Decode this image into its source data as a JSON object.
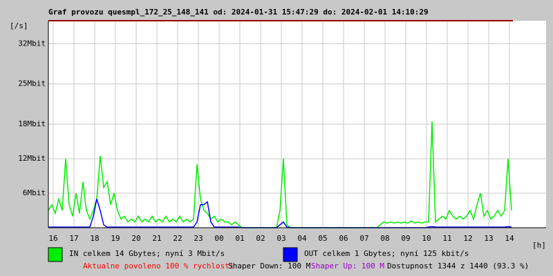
{
  "chart_data": {
    "type": "line",
    "title": "Graf provozu quesmpl_172_25_148_141 od: 2024-01-31 15:47:29 do: 2024-02-01 14:10:29",
    "y_label": "[/s]",
    "x_label": "[h]",
    "xtick_labels": [
      "16",
      "17",
      "18",
      "19",
      "20",
      "21",
      "22",
      "23",
      "00",
      "01",
      "02",
      "03",
      "04",
      "05",
      "06",
      "07",
      "08",
      "09",
      "10",
      "11",
      "12",
      "13",
      "14"
    ],
    "ylim": [
      0,
      36
    ],
    "yticks": [
      {
        "value": 6,
        "label": "6Mbit"
      },
      {
        "value": 12,
        "label": "12Mbit"
      },
      {
        "value": 18,
        "label": "18Mbit"
      },
      {
        "value": 25,
        "label": "25Mbit"
      },
      {
        "value": 32,
        "label": "32Mbit"
      }
    ],
    "grid": true,
    "series": [
      {
        "name": "IN celkem 14 Gbytes; nyní 3 Mbit/s",
        "color": "#00ee00",
        "values": [
          3,
          4,
          2.5,
          5,
          3,
          12,
          4,
          2,
          6,
          2.5,
          8,
          3,
          1.5,
          3,
          5,
          12.5,
          7,
          8,
          4,
          6,
          3,
          1.5,
          2,
          1,
          1.5,
          1,
          2,
          1,
          1.5,
          1,
          2,
          1,
          1.5,
          1,
          2,
          1,
          1.5,
          1,
          2,
          1,
          1.5,
          1,
          1.5,
          11,
          5,
          3,
          2.5,
          1.5,
          2,
          1,
          1.5,
          1,
          1,
          0.5,
          1,
          0.5,
          0,
          0,
          0,
          0,
          0,
          0,
          0,
          0,
          0,
          0,
          0,
          3,
          12,
          0.5,
          0,
          0,
          0,
          0,
          0,
          0,
          0,
          0,
          0,
          0,
          0,
          0,
          0,
          0,
          0,
          0,
          0,
          0,
          0,
          0,
          0,
          0,
          0,
          0,
          0,
          0,
          0.5,
          1,
          0.8,
          1,
          0.8,
          1,
          0.8,
          1,
          0.8,
          1.2,
          0.8,
          1,
          0.8,
          1,
          1,
          18.5,
          1,
          1.5,
          2,
          1.5,
          3,
          2,
          1.5,
          2,
          1.5,
          2,
          3,
          1.5,
          4,
          6,
          2,
          3,
          1.5,
          2,
          3,
          2,
          3,
          12,
          3
        ]
      },
      {
        "name": "OUT celkem 1 Gbytes; nyní 125 kbit/s",
        "color": "#0000ff",
        "values": [
          0.1,
          0.1,
          0.1,
          0.1,
          0.1,
          0.1,
          0.1,
          0.1,
          0.1,
          0.1,
          0.1,
          0.1,
          0.1,
          2,
          5,
          3,
          0.5,
          0.1,
          0.1,
          0.1,
          0.1,
          0.1,
          0.1,
          0.1,
          0.1,
          0.1,
          0.1,
          0.1,
          0.1,
          0.1,
          0.1,
          0.1,
          0.1,
          0.1,
          0.1,
          0.1,
          0.1,
          0.1,
          0.1,
          0.1,
          0.1,
          0.1,
          0.1,
          1,
          4,
          4,
          4.5,
          1,
          0.1,
          0.1,
          0.1,
          0.1,
          0.1,
          0.1,
          0.1,
          0.1,
          0,
          0,
          0,
          0,
          0,
          0,
          0,
          0,
          0,
          0,
          0,
          0.5,
          1,
          0.1,
          0,
          0,
          0,
          0,
          0,
          0,
          0,
          0,
          0,
          0,
          0,
          0,
          0,
          0,
          0,
          0,
          0,
          0,
          0,
          0,
          0,
          0,
          0,
          0,
          0,
          0,
          0,
          0,
          0,
          0,
          0,
          0,
          0,
          0,
          0,
          0,
          0,
          0,
          0,
          0,
          0.1,
          0.2,
          0.1,
          0.1,
          0.1,
          0.1,
          0.1,
          0.1,
          0.1,
          0.1,
          0.1,
          0.1,
          0.1,
          0.1,
          0.1,
          0.1,
          0.1,
          0.1,
          0.1,
          0.1,
          0.1,
          0.1,
          0.1,
          0.2,
          0.1
        ]
      }
    ]
  },
  "footer": {
    "allowed": "Aktualne povoleno 100 % rychlosti",
    "shaper_down": "Shaper Down: 100 M",
    "shaper_up": "Shaper Up: 100 M",
    "availability": "Dostupnost 1344 z 1440 (93.3 %)"
  }
}
